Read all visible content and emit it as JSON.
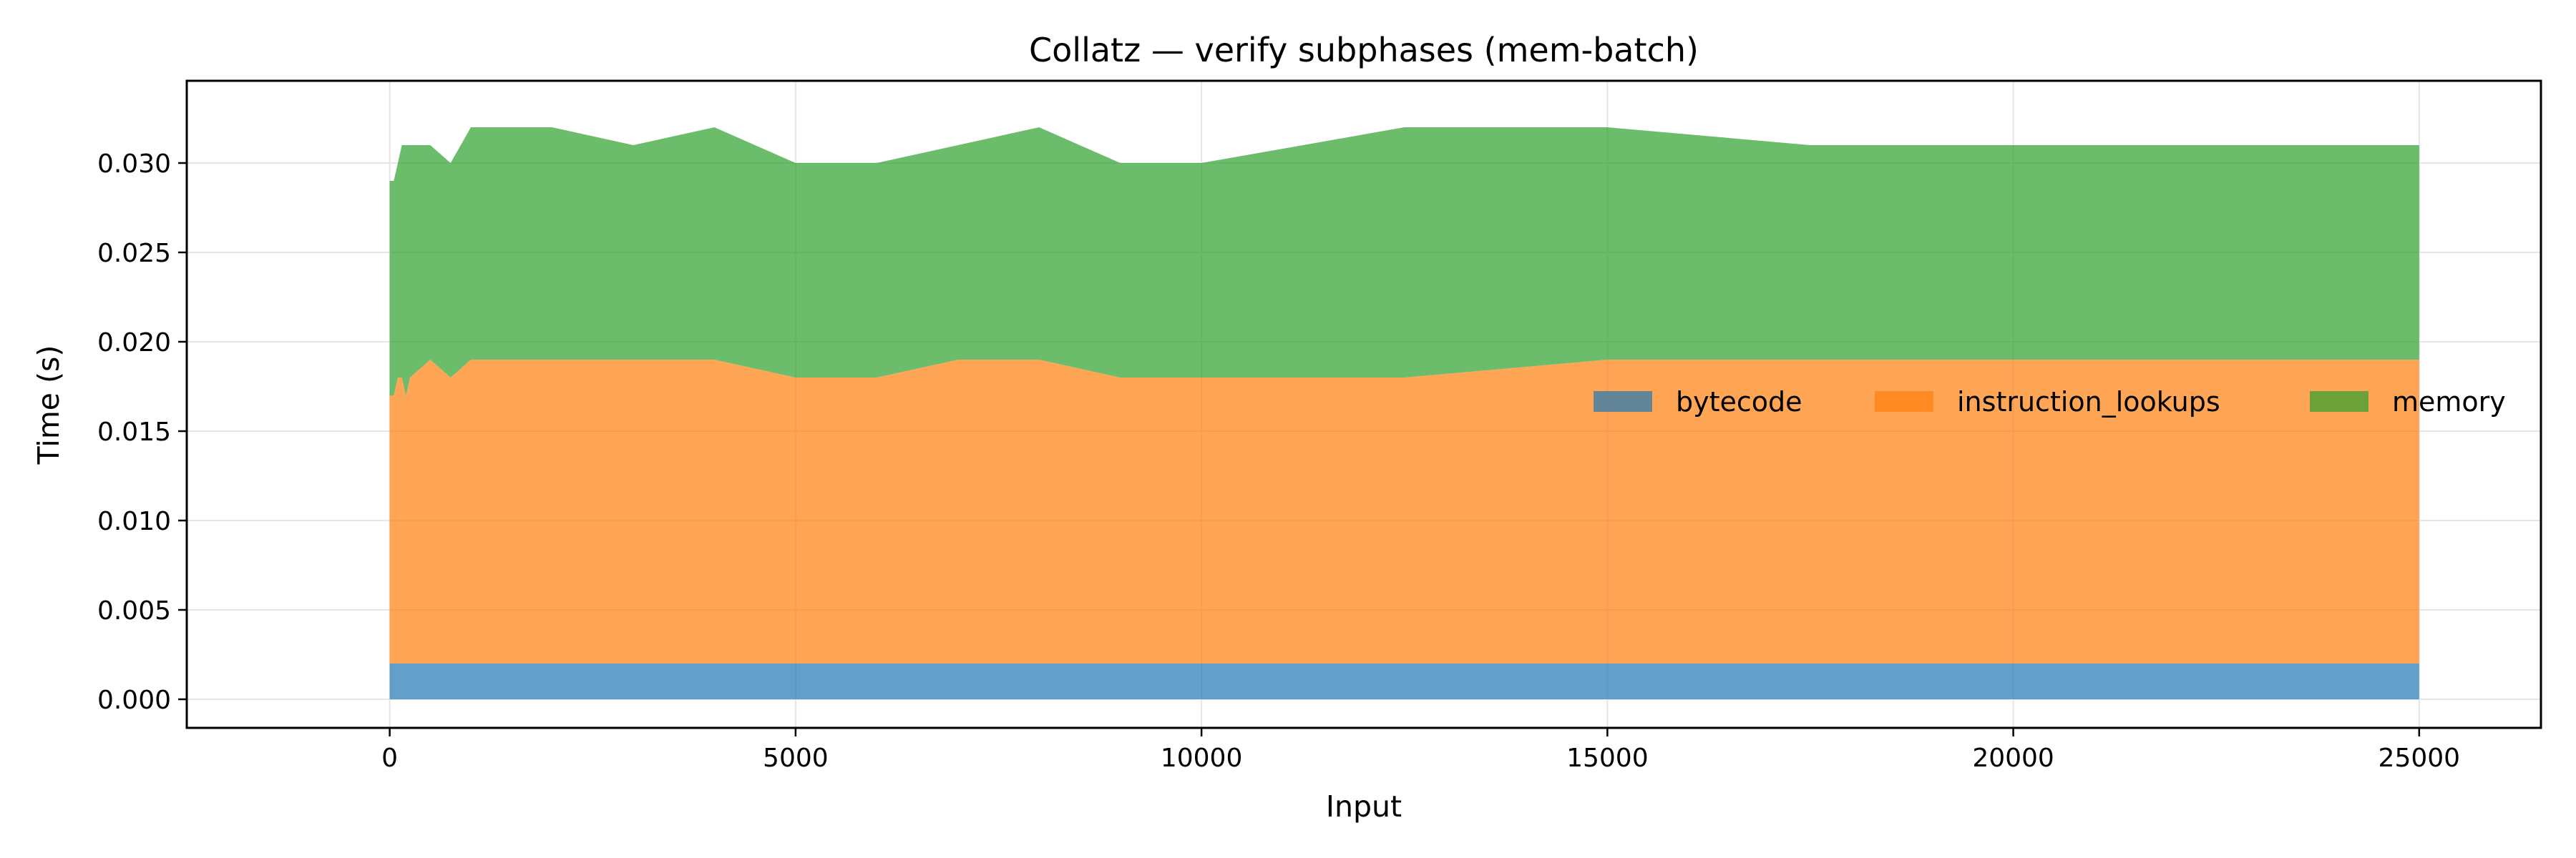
{
  "chart_data": {
    "type": "area",
    "stacked": true,
    "title": "Collatz — verify subphases (mem-batch)",
    "xlabel": "Input",
    "ylabel": "Time (s)",
    "xlim": [
      -2500,
      26500
    ],
    "ylim": [
      -0.0016,
      0.0346
    ],
    "xticks": [
      0,
      5000,
      10000,
      15000,
      20000,
      25000
    ],
    "xtick_labels": [
      "0",
      "5000",
      "10000",
      "15000",
      "20000",
      "25000"
    ],
    "yticks": [
      0.0,
      0.005,
      0.01,
      0.015,
      0.02,
      0.025,
      0.03
    ],
    "ytick_labels": [
      "0.000",
      "0.005",
      "0.010",
      "0.015",
      "0.020",
      "0.025",
      "0.030"
    ],
    "grid": true,
    "legend": {
      "placement": "center-right",
      "columns": 3
    },
    "x": [
      0,
      50,
      100,
      150,
      200,
      250,
      500,
      750,
      1000,
      2000,
      3000,
      4000,
      5000,
      6000,
      7000,
      8000,
      9000,
      10000,
      12500,
      15000,
      17500,
      20000,
      22500,
      25000
    ],
    "series": [
      {
        "name": "bytecode",
        "color": "#1f77b4",
        "values": [
          0.002,
          0.002,
          0.002,
          0.002,
          0.002,
          0.002,
          0.002,
          0.002,
          0.002,
          0.002,
          0.002,
          0.002,
          0.002,
          0.002,
          0.002,
          0.002,
          0.002,
          0.002,
          0.002,
          0.002,
          0.002,
          0.002,
          0.002,
          0.002
        ]
      },
      {
        "name": "instruction_lookups",
        "color": "#ff7f0e",
        "values": [
          0.015,
          0.015,
          0.016,
          0.016,
          0.015,
          0.016,
          0.017,
          0.016,
          0.017,
          0.017,
          0.017,
          0.017,
          0.016,
          0.016,
          0.017,
          0.017,
          0.016,
          0.016,
          0.016,
          0.017,
          0.017,
          0.017,
          0.017,
          0.017
        ]
      },
      {
        "name": "memory",
        "color": "#2ca02c",
        "values": [
          0.012,
          0.012,
          0.012,
          0.013,
          0.014,
          0.013,
          0.012,
          0.012,
          0.013,
          0.013,
          0.012,
          0.013,
          0.012,
          0.012,
          0.012,
          0.013,
          0.012,
          0.012,
          0.014,
          0.013,
          0.012,
          0.012,
          0.012,
          0.012
        ]
      }
    ]
  }
}
